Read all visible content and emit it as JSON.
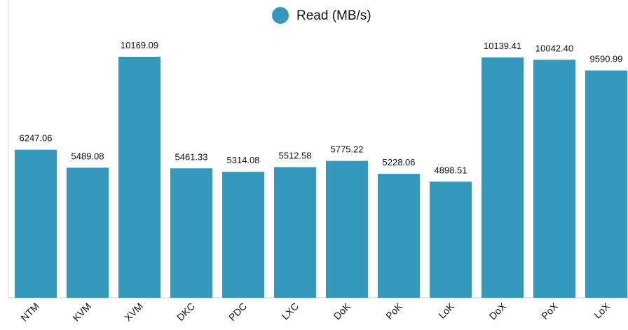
{
  "chart_data": {
    "type": "bar",
    "categories": [
      "NTM",
      "KVM",
      "XVM",
      "DKC",
      "PDC",
      "LXC",
      "DoK",
      "PoK",
      "LoK",
      "DoX",
      "PoX",
      "LoX"
    ],
    "series": [
      {
        "name": "Read (MB/s)",
        "color": "#3499bd",
        "values": [
          6247.06,
          5489.08,
          10169.09,
          5461.33,
          5314.08,
          5512.58,
          5775.22,
          5228.06,
          4898.51,
          10139.41,
          10042.4,
          9590.99
        ],
        "value_labels": [
          "6247.06",
          "5489.08",
          "10169.09",
          "5461.33",
          "5314.08",
          "5512.58",
          "5775.22",
          "5228.06",
          "4898.51",
          "10139.41",
          "10042.40",
          "9590.99"
        ]
      }
    ],
    "legend": "top"
  }
}
